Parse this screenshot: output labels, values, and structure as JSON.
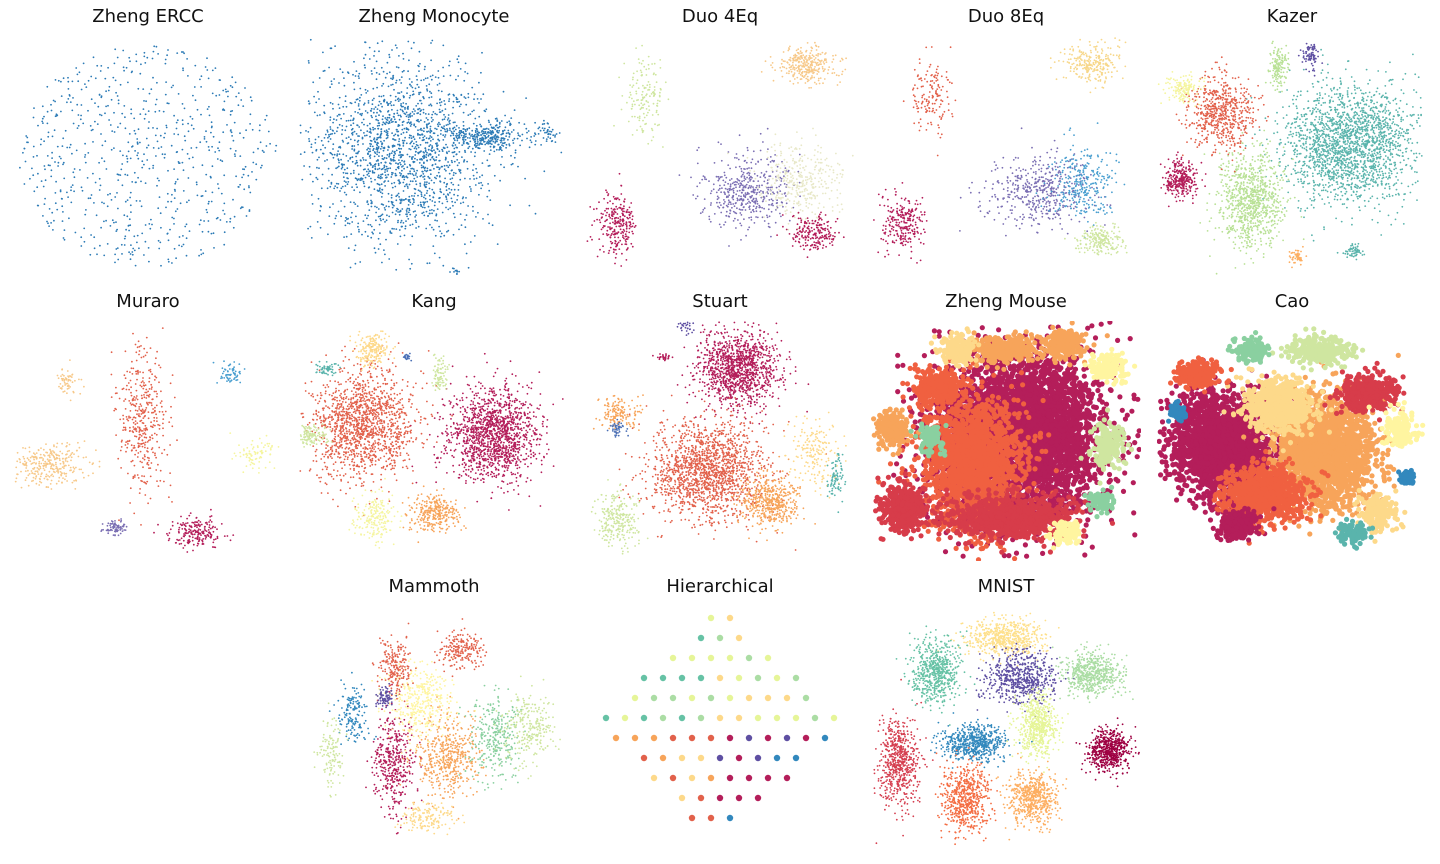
{
  "chart_data": [
    {
      "type": "scatter",
      "title": "Zheng ERCC",
      "palette": [
        "#2c7bb6"
      ],
      "clusters": [
        {
          "cx": 0.5,
          "cy": 0.5,
          "sx": 0.3,
          "sy": 0.28,
          "n": 700,
          "c": 0,
          "uniform": true
        }
      ]
    },
    {
      "type": "scatter",
      "title": "Zheng Monocyte",
      "palette": [
        "#2c7bb6"
      ],
      "clusters": [
        {
          "cx": 0.38,
          "cy": 0.48,
          "sx": 0.22,
          "sy": 0.26,
          "n": 1800,
          "c": 0
        },
        {
          "cx": 0.7,
          "cy": 0.42,
          "sx": 0.1,
          "sy": 0.04,
          "n": 300,
          "c": 0
        },
        {
          "cx": 0.92,
          "cy": 0.4,
          "sx": 0.02,
          "sy": 0.03,
          "n": 40,
          "c": 0
        },
        {
          "cx": 0.58,
          "cy": 0.98,
          "sx": 0.01,
          "sy": 0.01,
          "n": 10,
          "c": 0
        }
      ]
    },
    {
      "type": "scatter",
      "title": "Duo 4Eq",
      "palette": [
        "#b41e5a",
        "#7b6fb3",
        "#cfe6a0",
        "#f7c98a",
        "#e8e8c8"
      ],
      "clusters": [
        {
          "cx": 0.82,
          "cy": 0.12,
          "sx": 0.08,
          "sy": 0.05,
          "n": 300,
          "c": 3
        },
        {
          "cx": 0.22,
          "cy": 0.25,
          "sx": 0.05,
          "sy": 0.1,
          "n": 150,
          "c": 2
        },
        {
          "cx": 0.12,
          "cy": 0.78,
          "sx": 0.05,
          "sy": 0.08,
          "n": 250,
          "c": 0
        },
        {
          "cx": 0.6,
          "cy": 0.65,
          "sx": 0.1,
          "sy": 0.1,
          "n": 450,
          "c": 1
        },
        {
          "cx": 0.8,
          "cy": 0.6,
          "sx": 0.1,
          "sy": 0.1,
          "n": 350,
          "c": 4
        },
        {
          "cx": 0.85,
          "cy": 0.82,
          "sx": 0.06,
          "sy": 0.05,
          "n": 200,
          "c": 0
        }
      ]
    },
    {
      "type": "scatter",
      "title": "Duo 8Eq",
      "palette": [
        "#b41e5a",
        "#e2614b",
        "#7b6fb3",
        "#cfe6a0",
        "#f7d78a",
        "#4a9fd0"
      ],
      "clusters": [
        {
          "cx": 0.82,
          "cy": 0.12,
          "sx": 0.07,
          "sy": 0.05,
          "n": 250,
          "c": 4
        },
        {
          "cx": 0.22,
          "cy": 0.25,
          "sx": 0.05,
          "sy": 0.1,
          "n": 150,
          "c": 1
        },
        {
          "cx": 0.12,
          "cy": 0.78,
          "sx": 0.05,
          "sy": 0.08,
          "n": 250,
          "c": 0
        },
        {
          "cx": 0.62,
          "cy": 0.65,
          "sx": 0.12,
          "sy": 0.1,
          "n": 450,
          "c": 2
        },
        {
          "cx": 0.78,
          "cy": 0.62,
          "sx": 0.08,
          "sy": 0.1,
          "n": 300,
          "c": 5
        },
        {
          "cx": 0.85,
          "cy": 0.85,
          "sx": 0.06,
          "sy": 0.04,
          "n": 200,
          "c": 3
        }
      ]
    },
    {
      "type": "scatter",
      "title": "Kazer",
      "palette": [
        "#b41e5a",
        "#e2614b",
        "#b9e196",
        "#f5f59e",
        "#5ab4ac",
        "#5e4fa2",
        "#fdae61"
      ],
      "clusters": [
        {
          "cx": 0.72,
          "cy": 0.45,
          "sx": 0.16,
          "sy": 0.16,
          "n": 2000,
          "c": 4
        },
        {
          "cx": 0.35,
          "cy": 0.68,
          "sx": 0.08,
          "sy": 0.13,
          "n": 900,
          "c": 2
        },
        {
          "cx": 0.24,
          "cy": 0.32,
          "sx": 0.08,
          "sy": 0.1,
          "n": 600,
          "c": 1
        },
        {
          "cx": 0.1,
          "cy": 0.22,
          "sx": 0.04,
          "sy": 0.04,
          "n": 150,
          "c": 3
        },
        {
          "cx": 0.09,
          "cy": 0.6,
          "sx": 0.04,
          "sy": 0.05,
          "n": 300,
          "c": 0
        },
        {
          "cx": 0.45,
          "cy": 0.13,
          "sx": 0.02,
          "sy": 0.06,
          "n": 150,
          "c": 2
        },
        {
          "cx": 0.57,
          "cy": 0.08,
          "sx": 0.02,
          "sy": 0.04,
          "n": 80,
          "c": 5
        },
        {
          "cx": 0.52,
          "cy": 0.92,
          "sx": 0.02,
          "sy": 0.02,
          "n": 50,
          "c": 6
        },
        {
          "cx": 0.73,
          "cy": 0.9,
          "sx": 0.02,
          "sy": 0.02,
          "n": 60,
          "c": 4
        }
      ]
    },
    {
      "type": "scatter",
      "title": "Muraro",
      "palette": [
        "#b41e5a",
        "#e2614b",
        "#f7c98a",
        "#f5f59e",
        "#7b6fb3",
        "#4a9fd0"
      ],
      "clusters": [
        {
          "cx": 0.48,
          "cy": 0.4,
          "sx": 0.06,
          "sy": 0.2,
          "n": 400,
          "c": 1
        },
        {
          "cx": 0.13,
          "cy": 0.6,
          "sx": 0.1,
          "sy": 0.06,
          "n": 300,
          "c": 2
        },
        {
          "cx": 0.68,
          "cy": 0.88,
          "sx": 0.06,
          "sy": 0.04,
          "n": 200,
          "c": 0
        },
        {
          "cx": 0.38,
          "cy": 0.86,
          "sx": 0.03,
          "sy": 0.02,
          "n": 80,
          "c": 4
        },
        {
          "cx": 0.9,
          "cy": 0.55,
          "sx": 0.05,
          "sy": 0.04,
          "n": 80,
          "c": 3
        },
        {
          "cx": 0.8,
          "cy": 0.22,
          "sx": 0.03,
          "sy": 0.03,
          "n": 60,
          "c": 5
        },
        {
          "cx": 0.2,
          "cy": 0.25,
          "sx": 0.03,
          "sy": 0.04,
          "n": 60,
          "c": 2
        }
      ]
    },
    {
      "type": "scatter",
      "title": "Kang",
      "palette": [
        "#b41e5a",
        "#e2614b",
        "#f7a45a",
        "#fdd98a",
        "#f5f5a0",
        "#cfe6a0",
        "#5ab4ac",
        "#4a6fb5"
      ],
      "clusters": [
        {
          "cx": 0.72,
          "cy": 0.47,
          "sx": 0.11,
          "sy": 0.13,
          "n": 1400,
          "c": 0
        },
        {
          "cx": 0.24,
          "cy": 0.43,
          "sx": 0.13,
          "sy": 0.15,
          "n": 1400,
          "c": 1
        },
        {
          "cx": 0.5,
          "cy": 0.8,
          "sx": 0.06,
          "sy": 0.05,
          "n": 300,
          "c": 2
        },
        {
          "cx": 0.27,
          "cy": 0.12,
          "sx": 0.04,
          "sy": 0.05,
          "n": 200,
          "c": 3
        },
        {
          "cx": 0.28,
          "cy": 0.82,
          "sx": 0.05,
          "sy": 0.06,
          "n": 200,
          "c": 4
        },
        {
          "cx": 0.05,
          "cy": 0.48,
          "sx": 0.04,
          "sy": 0.03,
          "n": 120,
          "c": 5
        },
        {
          "cx": 0.52,
          "cy": 0.22,
          "sx": 0.02,
          "sy": 0.05,
          "n": 80,
          "c": 5
        },
        {
          "cx": 0.1,
          "cy": 0.2,
          "sx": 0.03,
          "sy": 0.02,
          "n": 60,
          "c": 6
        },
        {
          "cx": 0.4,
          "cy": 0.15,
          "sx": 0.01,
          "sy": 0.01,
          "n": 20,
          "c": 7
        }
      ]
    },
    {
      "type": "scatter",
      "title": "Stuart",
      "palette": [
        "#b41e5a",
        "#e2614b",
        "#f7a45a",
        "#fdd98a",
        "#cfe6a0",
        "#5ab4ac",
        "#4a6fb5",
        "#5e4fa2"
      ],
      "clusters": [
        {
          "cx": 0.57,
          "cy": 0.2,
          "sx": 0.1,
          "sy": 0.1,
          "n": 1200,
          "c": 0
        },
        {
          "cx": 0.45,
          "cy": 0.62,
          "sx": 0.14,
          "sy": 0.14,
          "n": 1600,
          "c": 1
        },
        {
          "cx": 0.68,
          "cy": 0.75,
          "sx": 0.07,
          "sy": 0.07,
          "n": 500,
          "c": 2
        },
        {
          "cx": 0.12,
          "cy": 0.82,
          "sx": 0.05,
          "sy": 0.08,
          "n": 250,
          "c": 4
        },
        {
          "cx": 0.12,
          "cy": 0.38,
          "sx": 0.05,
          "sy": 0.05,
          "n": 150,
          "c": 2
        },
        {
          "cx": 0.85,
          "cy": 0.55,
          "sx": 0.06,
          "sy": 0.1,
          "n": 180,
          "c": 3
        },
        {
          "cx": 0.93,
          "cy": 0.65,
          "sx": 0.02,
          "sy": 0.06,
          "n": 80,
          "c": 5
        },
        {
          "cx": 0.12,
          "cy": 0.45,
          "sx": 0.02,
          "sy": 0.02,
          "n": 40,
          "c": 6
        },
        {
          "cx": 0.38,
          "cy": 0.02,
          "sx": 0.02,
          "sy": 0.02,
          "n": 30,
          "c": 7
        },
        {
          "cx": 0.3,
          "cy": 0.15,
          "sx": 0.02,
          "sy": 0.01,
          "n": 30,
          "c": 0
        }
      ]
    },
    {
      "type": "scatter",
      "title": "Zheng Mouse",
      "palette": [
        "#b41e5a",
        "#d73c4a",
        "#f06040",
        "#f7a45a",
        "#fdd98a",
        "#fff5a0",
        "#cfe6a0",
        "#8ad0a0",
        "#5ab4ac",
        "#4a6fb5"
      ],
      "clusters": [
        {
          "cx": 0.55,
          "cy": 0.48,
          "sx": 0.2,
          "sy": 0.22,
          "n": 4500,
          "c": 0,
          "r": 2.6
        },
        {
          "cx": 0.38,
          "cy": 0.58,
          "sx": 0.12,
          "sy": 0.18,
          "n": 1800,
          "c": 2,
          "r": 2.6
        },
        {
          "cx": 0.52,
          "cy": 0.82,
          "sx": 0.16,
          "sy": 0.06,
          "n": 800,
          "c": 1,
          "r": 2.6
        },
        {
          "cx": 0.12,
          "cy": 0.78,
          "sx": 0.05,
          "sy": 0.07,
          "n": 400,
          "c": 1,
          "r": 2.6
        },
        {
          "cx": 0.24,
          "cy": 0.28,
          "sx": 0.06,
          "sy": 0.05,
          "n": 300,
          "c": 2,
          "r": 2.6
        },
        {
          "cx": 0.5,
          "cy": 0.12,
          "sx": 0.08,
          "sy": 0.04,
          "n": 300,
          "c": 3,
          "r": 2.6
        },
        {
          "cx": 0.32,
          "cy": 0.12,
          "sx": 0.04,
          "sy": 0.04,
          "n": 200,
          "c": 4,
          "r": 2.6
        },
        {
          "cx": 0.72,
          "cy": 0.1,
          "sx": 0.05,
          "sy": 0.04,
          "n": 200,
          "c": 3,
          "r": 2.6
        },
        {
          "cx": 0.88,
          "cy": 0.52,
          "sx": 0.04,
          "sy": 0.06,
          "n": 200,
          "c": 6,
          "r": 2.6
        },
        {
          "cx": 0.08,
          "cy": 0.45,
          "sx": 0.04,
          "sy": 0.05,
          "n": 200,
          "c": 3,
          "r": 2.6
        },
        {
          "cx": 0.88,
          "cy": 0.2,
          "sx": 0.05,
          "sy": 0.04,
          "n": 150,
          "c": 5,
          "r": 2.6
        },
        {
          "cx": 0.22,
          "cy": 0.48,
          "sx": 0.03,
          "sy": 0.04,
          "n": 120,
          "c": 7,
          "r": 2.6
        },
        {
          "cx": 0.72,
          "cy": 0.88,
          "sx": 0.04,
          "sy": 0.03,
          "n": 100,
          "c": 5,
          "r": 2.6
        },
        {
          "cx": 0.85,
          "cy": 0.75,
          "sx": 0.03,
          "sy": 0.03,
          "n": 80,
          "c": 7,
          "r": 2.6
        }
      ]
    },
    {
      "type": "scatter",
      "title": "Cao",
      "palette": [
        "#b41e5a",
        "#d73c4a",
        "#f06040",
        "#f7a45a",
        "#fdd98a",
        "#fff5a0",
        "#cfe6a0",
        "#8ad0a0",
        "#5ab4ac",
        "#3288bd"
      ],
      "clusters": [
        {
          "cx": 0.25,
          "cy": 0.52,
          "sx": 0.13,
          "sy": 0.14,
          "n": 2200,
          "c": 0,
          "r": 2.6
        },
        {
          "cx": 0.62,
          "cy": 0.55,
          "sx": 0.12,
          "sy": 0.15,
          "n": 2000,
          "c": 3,
          "r": 2.6
        },
        {
          "cx": 0.4,
          "cy": 0.72,
          "sx": 0.1,
          "sy": 0.07,
          "n": 900,
          "c": 2,
          "r": 2.6
        },
        {
          "cx": 0.45,
          "cy": 0.35,
          "sx": 0.08,
          "sy": 0.07,
          "n": 700,
          "c": 4,
          "r": 2.6
        },
        {
          "cx": 0.78,
          "cy": 0.3,
          "sx": 0.07,
          "sy": 0.05,
          "n": 400,
          "c": 1,
          "r": 2.6
        },
        {
          "cx": 0.3,
          "cy": 0.85,
          "sx": 0.05,
          "sy": 0.04,
          "n": 250,
          "c": 0,
          "r": 2.6
        },
        {
          "cx": 0.15,
          "cy": 0.22,
          "sx": 0.05,
          "sy": 0.04,
          "n": 250,
          "c": 2,
          "r": 2.6
        },
        {
          "cx": 0.6,
          "cy": 0.12,
          "sx": 0.08,
          "sy": 0.04,
          "n": 250,
          "c": 6,
          "r": 2.6
        },
        {
          "cx": 0.82,
          "cy": 0.8,
          "sx": 0.05,
          "sy": 0.05,
          "n": 200,
          "c": 4,
          "r": 2.6
        },
        {
          "cx": 0.9,
          "cy": 0.45,
          "sx": 0.04,
          "sy": 0.05,
          "n": 150,
          "c": 5,
          "r": 2.6
        },
        {
          "cx": 0.35,
          "cy": 0.12,
          "sx": 0.04,
          "sy": 0.03,
          "n": 150,
          "c": 7,
          "r": 2.6
        },
        {
          "cx": 0.72,
          "cy": 0.88,
          "sx": 0.04,
          "sy": 0.03,
          "n": 100,
          "c": 8,
          "r": 2.6
        },
        {
          "cx": 0.08,
          "cy": 0.38,
          "sx": 0.02,
          "sy": 0.02,
          "n": 60,
          "c": 9,
          "r": 2.6
        },
        {
          "cx": 0.93,
          "cy": 0.65,
          "sx": 0.02,
          "sy": 0.02,
          "n": 60,
          "c": 9,
          "r": 2.6
        }
      ]
    },
    {
      "type": "scatter",
      "title": "Mammoth",
      "palette": [
        "#b41e5a",
        "#e2614b",
        "#f7a45a",
        "#fdd98a",
        "#fff5a0",
        "#cfe6a0",
        "#8ad0a0",
        "#3288bd",
        "#5e4fa2"
      ],
      "clusters": [
        {
          "cx": 0.55,
          "cy": 0.62,
          "sx": 0.08,
          "sy": 0.12,
          "n": 500,
          "c": 2
        },
        {
          "cx": 0.35,
          "cy": 0.65,
          "sx": 0.05,
          "sy": 0.14,
          "n": 400,
          "c": 0
        },
        {
          "cx": 0.45,
          "cy": 0.4,
          "sx": 0.08,
          "sy": 0.1,
          "n": 400,
          "c": 4
        },
        {
          "cx": 0.72,
          "cy": 0.55,
          "sx": 0.06,
          "sy": 0.12,
          "n": 300,
          "c": 6
        },
        {
          "cx": 0.85,
          "cy": 0.5,
          "sx": 0.06,
          "sy": 0.1,
          "n": 250,
          "c": 5
        },
        {
          "cx": 0.2,
          "cy": 0.45,
          "sx": 0.04,
          "sy": 0.08,
          "n": 150,
          "c": 7
        },
        {
          "cx": 0.35,
          "cy": 0.25,
          "sx": 0.04,
          "sy": 0.08,
          "n": 200,
          "c": 1
        },
        {
          "cx": 0.6,
          "cy": 0.18,
          "sx": 0.06,
          "sy": 0.05,
          "n": 200,
          "c": 1
        },
        {
          "cx": 0.48,
          "cy": 0.88,
          "sx": 0.06,
          "sy": 0.04,
          "n": 150,
          "c": 3
        },
        {
          "cx": 0.32,
          "cy": 0.38,
          "sx": 0.02,
          "sy": 0.03,
          "n": 80,
          "c": 8
        },
        {
          "cx": 0.12,
          "cy": 0.62,
          "sx": 0.03,
          "sy": 0.1,
          "n": 120,
          "c": 5
        }
      ]
    },
    {
      "type": "scatter",
      "title": "Hierarchical",
      "palette": [
        "#b41e5a",
        "#e2614b",
        "#f7a45a",
        "#fdd98a",
        "#e6f598",
        "#abdda4",
        "#66c2a5",
        "#3288bd",
        "#5e4fa2"
      ],
      "grid": true
    },
    {
      "type": "scatter",
      "title": "MNIST",
      "palette": [
        "#9e0142",
        "#d53e4f",
        "#f46d43",
        "#fdae61",
        "#fee08b",
        "#e6f598",
        "#abdda4",
        "#66c2a5",
        "#3288bd",
        "#5e4fa2"
      ],
      "clusters": [
        {
          "cx": 0.5,
          "cy": 0.13,
          "sx": 0.09,
          "sy": 0.05,
          "n": 600,
          "c": 4
        },
        {
          "cx": 0.24,
          "cy": 0.27,
          "sx": 0.06,
          "sy": 0.09,
          "n": 600,
          "c": 7
        },
        {
          "cx": 0.55,
          "cy": 0.3,
          "sx": 0.09,
          "sy": 0.07,
          "n": 600,
          "c": 9
        },
        {
          "cx": 0.82,
          "cy": 0.28,
          "sx": 0.07,
          "sy": 0.06,
          "n": 600,
          "c": 6
        },
        {
          "cx": 0.62,
          "cy": 0.5,
          "sx": 0.05,
          "sy": 0.08,
          "n": 600,
          "c": 5
        },
        {
          "cx": 0.1,
          "cy": 0.65,
          "sx": 0.05,
          "sy": 0.12,
          "n": 600,
          "c": 1
        },
        {
          "cx": 0.38,
          "cy": 0.57,
          "sx": 0.08,
          "sy": 0.05,
          "n": 600,
          "c": 8
        },
        {
          "cx": 0.88,
          "cy": 0.6,
          "sx": 0.05,
          "sy": 0.06,
          "n": 600,
          "c": 0
        },
        {
          "cx": 0.35,
          "cy": 0.8,
          "sx": 0.06,
          "sy": 0.09,
          "n": 600,
          "c": 2
        },
        {
          "cx": 0.6,
          "cy": 0.8,
          "sx": 0.06,
          "sy": 0.07,
          "n": 600,
          "c": 3
        }
      ]
    }
  ]
}
